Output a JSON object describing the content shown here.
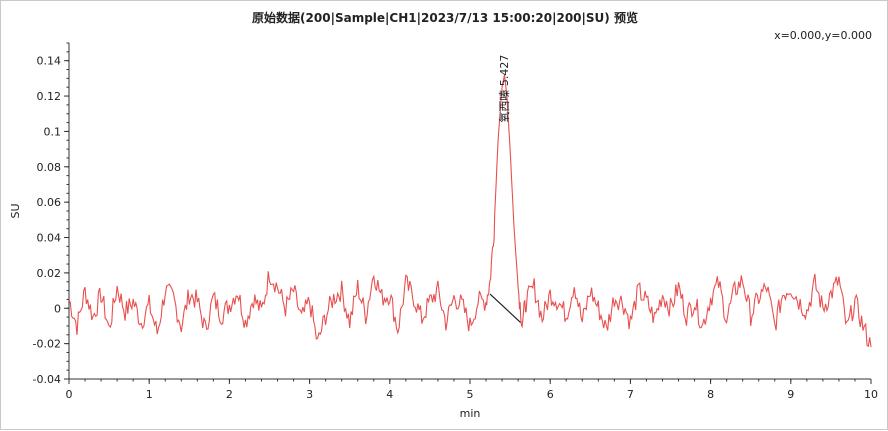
{
  "chart_data": {
    "type": "line",
    "title": "原始数据(200|Sample|CH1|2023/7/13  15:00:20|200|SU) 预览",
    "coordinate_readout": "x=0.000,y=0.000",
    "xlabel": "min",
    "ylabel": "SU",
    "xlim": [
      0,
      10
    ],
    "ylim": [
      -0.04,
      0.15
    ],
    "x_ticks": [
      0,
      1,
      2,
      3,
      4,
      5,
      6,
      7,
      8,
      9,
      10
    ],
    "x_tick_labels": [
      "0",
      "1",
      "2",
      "3",
      "4",
      "5",
      "6",
      "7",
      "8",
      "9",
      "10"
    ],
    "y_ticks": [
      -0.04,
      -0.02,
      0,
      0.02,
      0.04,
      0.06,
      0.08,
      0.1,
      0.12,
      0.14
    ],
    "y_tick_labels": [
      "-0.04",
      "-0.02",
      "0",
      "0.02",
      "0.04",
      "0.06",
      "0.08",
      "0.1",
      "0.12",
      "0.14"
    ],
    "grid": false,
    "series": [
      {
        "color": "#e8504f",
        "x": [
          0,
          0.1,
          0.2,
          0.3,
          0.4,
          0.5,
          0.6,
          0.7,
          0.8,
          0.9,
          1.0,
          1.1,
          1.2,
          1.3,
          1.4,
          1.5,
          1.6,
          1.7,
          1.8,
          1.9,
          2.0,
          2.1,
          2.2,
          2.3,
          2.4,
          2.5,
          2.6,
          2.7,
          2.8,
          2.9,
          3.0,
          3.1,
          3.2,
          3.3,
          3.4,
          3.5,
          3.6,
          3.7,
          3.8,
          3.9,
          4.0,
          4.1,
          4.2,
          4.3,
          4.4,
          4.5,
          4.6,
          4.7,
          4.8,
          4.9,
          5.0,
          5.1,
          5.2,
          5.25,
          5.3,
          5.35,
          5.4,
          5.43,
          5.46,
          5.5,
          5.55,
          5.6,
          5.65,
          5.7,
          5.8,
          5.9,
          6.0,
          6.1,
          6.2,
          6.3,
          6.4,
          6.5,
          6.6,
          6.7,
          6.8,
          6.9,
          7.0,
          7.1,
          7.2,
          7.3,
          7.4,
          7.5,
          7.6,
          7.7,
          7.8,
          7.9,
          8.0,
          8.1,
          8.2,
          8.3,
          8.4,
          8.5,
          8.6,
          8.7,
          8.8,
          8.9,
          9.0,
          9.1,
          9.2,
          9.3,
          9.4,
          9.5,
          9.6,
          9.7,
          9.8,
          9.9,
          10.0
        ],
        "y": [
          0.005,
          -0.01,
          0.01,
          -0.005,
          0.008,
          -0.012,
          0.012,
          -0.002,
          0.004,
          -0.008,
          0.002,
          -0.014,
          0.01,
          0.006,
          -0.01,
          0.008,
          0.004,
          -0.012,
          0.006,
          -0.004,
          0.002,
          0.01,
          -0.008,
          0.006,
          -0.002,
          0.02,
          0.012,
          0.0,
          0.01,
          -0.006,
          0.004,
          -0.02,
          -0.004,
          0.006,
          0.01,
          -0.008,
          0.012,
          -0.004,
          0.02,
          0.006,
          0.008,
          -0.012,
          0.014,
          0.006,
          -0.006,
          0.004,
          0.01,
          -0.008,
          0.006,
          0.002,
          -0.01,
          0.004,
          0.004,
          0.015,
          0.045,
          0.095,
          0.125,
          0.132,
          0.12,
          0.09,
          0.045,
          0.012,
          -0.008,
          0.004,
          0.012,
          -0.006,
          0.008,
          0.004,
          -0.004,
          0.014,
          -0.008,
          0.01,
          0.0,
          -0.012,
          0.006,
          0.004,
          -0.008,
          0.01,
          0.004,
          -0.006,
          0.008,
          0.0,
          0.012,
          -0.004,
          0.004,
          -0.01,
          0.006,
          0.014,
          -0.006,
          0.01,
          0.016,
          -0.004,
          0.006,
          0.012,
          -0.01,
          0.008,
          0.012,
          0.004,
          -0.002,
          0.014,
          0.0,
          0.008,
          0.016,
          -0.012,
          0.004,
          -0.01,
          -0.022
        ]
      }
    ],
    "annotations": [
      {
        "text": "氧西嗪 5.427",
        "x": 5.427,
        "y": 0.105
      }
    ],
    "baseline": {
      "x": [
        5.25,
        5.63
      ],
      "y": [
        0.008,
        -0.008
      ],
      "color": "#222222"
    }
  }
}
